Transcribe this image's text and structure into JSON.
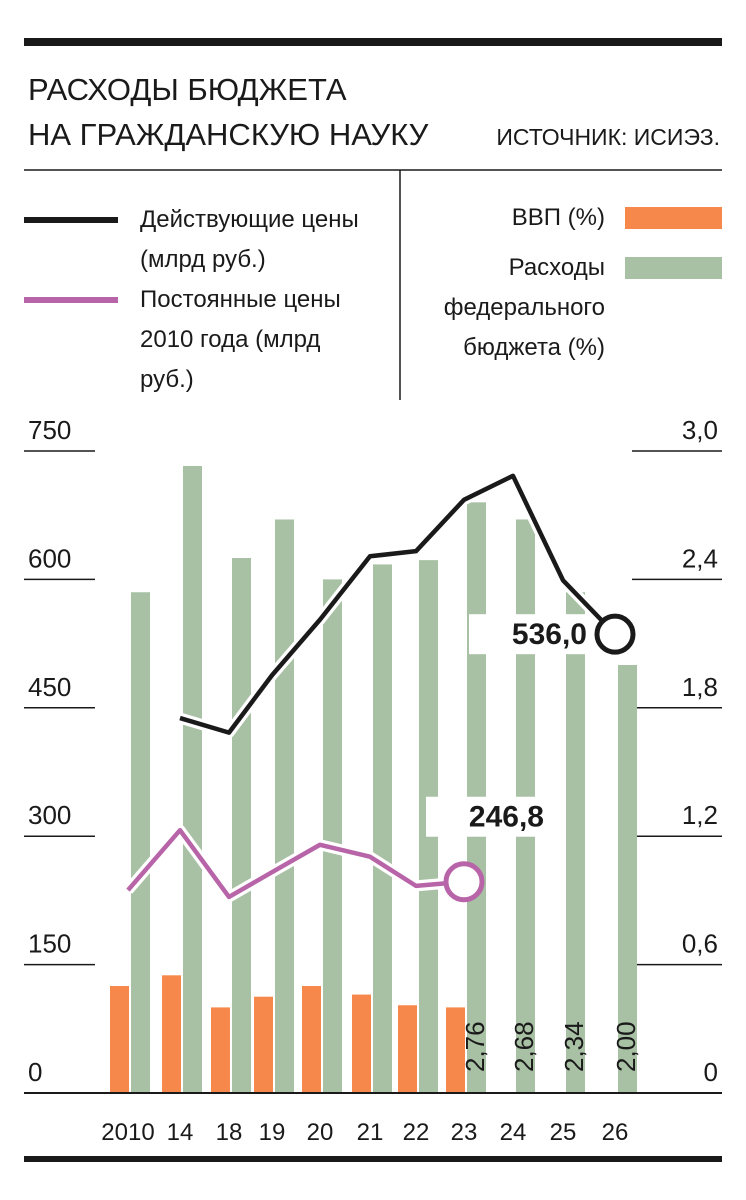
{
  "chart_data": {
    "type": "bar",
    "title": [
      "РАСХОДЫ БЮДЖЕТА",
      "НА ГРАЖДАНСКУЮ НАУКУ"
    ],
    "source": "ИСТОЧНИК: ИСИЭЗ.",
    "categories": [
      "2010",
      "14",
      "18",
      "19",
      "20",
      "21",
      "22",
      "23",
      "24",
      "25",
      "26"
    ],
    "ylim": [
      0,
      750
    ],
    "yticks": [
      0,
      150,
      300,
      450,
      600,
      750
    ],
    "y2lim": [
      0,
      3
    ],
    "y2ticks": [
      0,
      {
        "value": 0.6,
        "label": "0,6"
      },
      {
        "value": 1.2,
        "label": "1,2"
      },
      {
        "value": 1.8,
        "label": "1,8"
      },
      {
        "value": 2.4,
        "label": "2,4"
      },
      {
        "value": 3,
        "label": "3,0"
      }
    ],
    "series": [
      {
        "name": "Действующие цены (млрд руб.)",
        "type": "line",
        "color": "#1a1a1a",
        "values": [
          null,
          438,
          421,
          488,
          553,
          627,
          633,
          693,
          721,
          599,
          536.0
        ],
        "value_labels": [
          null,
          null,
          null,
          null,
          null,
          null,
          null,
          null,
          null,
          null,
          "536,0"
        ]
      },
      {
        "name": "Постоянные цены 2010 года (млрд руб.)",
        "type": "line",
        "color": "#b864a8",
        "values": [
          237,
          307,
          229,
          258,
          290,
          276,
          242,
          246.8,
          null,
          null,
          null
        ],
        "value_labels": [
          null,
          null,
          null,
          null,
          null,
          null,
          null,
          "246,8",
          null,
          null,
          null
        ]
      },
      {
        "name": "ВВП (%)",
        "type": "bar",
        "axis": "y2",
        "color": "#f5884a",
        "values": [
          0.5,
          0.55,
          0.4,
          0.45,
          0.5,
          0.46,
          0.41,
          0.4,
          null,
          null,
          null
        ]
      },
      {
        "name": "Расходы федерального бюджета (%)",
        "type": "bar",
        "axis": "y2",
        "color": "#a8c0a4",
        "values": [
          2.34,
          2.93,
          2.5,
          2.68,
          2.4,
          2.47,
          2.49,
          2.76,
          2.68,
          2.34,
          2.0
        ],
        "value_labels": [
          null,
          null,
          null,
          null,
          null,
          null,
          null,
          "2,76",
          "2,68",
          "2,34",
          "2,00"
        ]
      }
    ]
  }
}
